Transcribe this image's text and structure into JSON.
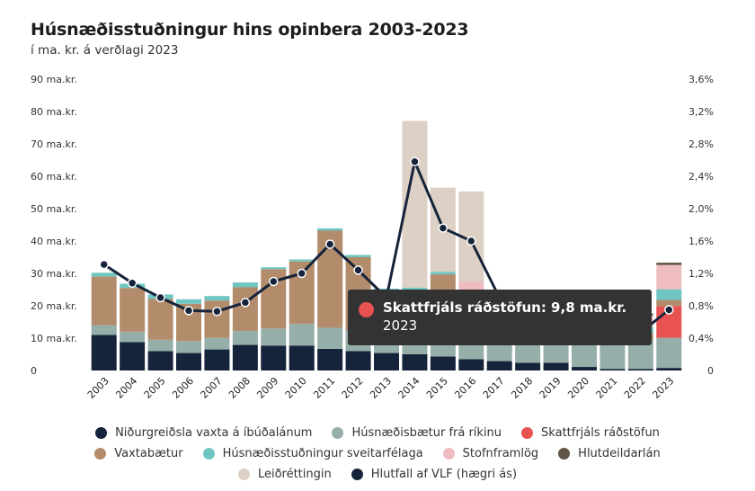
{
  "title": "Húsnæðisstuðningur hins opinbera 2003-2023",
  "subtitle": "í ma. kr. á verðlagi 2023",
  "colors": {
    "vaxta_ibudalanum": "#15243a",
    "husnaedisbaetur_rikinu": "#95aea9",
    "skattfrjals": "#e85352",
    "vaxtabaetur": "#b38c6c",
    "sveitarfelaga": "#6fc6c0",
    "stofnframlog": "#efbcc0",
    "hlutdeildarlan": "#5f5445",
    "leidrettingin": "#ddd0c4",
    "line": "#15243a"
  },
  "legend": [
    {
      "label": "Niðurgreiðsla vaxta á íbúðalánum",
      "color": "#15243a"
    },
    {
      "label": "Húsnæðisbætur frá ríkinu",
      "color": "#95aea9"
    },
    {
      "label": "Skattfrjáls ráðstöfun",
      "color": "#e85352"
    },
    {
      "label": "Vaxtabætur",
      "color": "#b38c6c"
    },
    {
      "label": "Húsnæðisstuðningur sveitarfélaga",
      "color": "#6fc6c0"
    },
    {
      "label": "Stofnframlög",
      "color": "#efbcc0"
    },
    {
      "label": "Hlutdeildarlán",
      "color": "#5f5445"
    },
    {
      "label": "Leiðréttingin",
      "color": "#ddd0c4"
    },
    {
      "label": "Hlutfall af VLF (hægri ás)",
      "color": "#15243a"
    }
  ],
  "tooltip": {
    "label": "Skattfrjáls ráðstöfun: 9,8 ma.kr.",
    "year": "2023"
  },
  "chart_data": {
    "type": "bar",
    "stacked": true,
    "categories": [
      "2003",
      "2004",
      "2005",
      "2006",
      "2007",
      "2008",
      "2009",
      "2010",
      "2011",
      "2012",
      "2013",
      "2014",
      "2015",
      "2016",
      "2017",
      "2018",
      "2019",
      "2020",
      "2021",
      "2022",
      "2023"
    ],
    "ylim": [
      0,
      90
    ],
    "y2lim": [
      0,
      3.6
    ],
    "yticks": [
      "0",
      "10 ma.kr.",
      "20 ma.kr.",
      "30 ma.kr.",
      "40 ma.kr.",
      "50 ma.kr.",
      "60 ma.kr.",
      "70 ma.kr.",
      "80 ma.kr.",
      "90 ma.kr."
    ],
    "y2ticks": [
      "0",
      "0,4%",
      "0,8%",
      "1,2%",
      "1,6%",
      "2,0%",
      "2,4%",
      "2,8%",
      "3,2%",
      "3,6%"
    ],
    "series": [
      {
        "name": "Niðurgreiðsla vaxta á íbúðalánum",
        "key": "vaxta_ibudalanum",
        "values": [
          11,
          8.8,
          6,
          5.4,
          6.5,
          7.9,
          7.7,
          7.7,
          6.7,
          6,
          5.4,
          5,
          4.3,
          3.5,
          2.9,
          2.4,
          2.4,
          1.1,
          0.5,
          0.5,
          0.8
        ]
      },
      {
        "name": "Húsnæðisbætur frá ríkinu",
        "key": "husnaedisbaetur_rikinu",
        "values": [
          3,
          3.2,
          3.5,
          3.7,
          3.6,
          4.3,
          5.3,
          6.7,
          6.5,
          6.5,
          6.6,
          6.9,
          6.9,
          7,
          7.4,
          8.2,
          8.5,
          8.9,
          9.1,
          9,
          9.3
        ]
      },
      {
        "name": "Skattfrjáls ráðstöfun",
        "key": "skattfrjals",
        "values": [
          0,
          0,
          0,
          0,
          0,
          0,
          0,
          0,
          0,
          0,
          0,
          0,
          0,
          0,
          0,
          0,
          0,
          0,
          0,
          0,
          9.8
        ]
      },
      {
        "name": "Vaxtabætur",
        "key": "vaxtabaetur",
        "values": [
          15,
          13.5,
          12.6,
          11.5,
          11.5,
          13.5,
          18.3,
          19.3,
          30,
          22.5,
          12.5,
          12.8,
          18.5,
          10,
          5.5,
          3.5,
          3.2,
          2.8,
          2.4,
          2.1,
          1.9
        ]
      },
      {
        "name": "Húsnæðisstuðningur sveitarfélaga",
        "key": "sveitarfelaga",
        "values": [
          1.2,
          1.3,
          1.4,
          1.4,
          1.4,
          1.5,
          0.6,
          0.6,
          0.7,
          0.7,
          0.8,
          0.9,
          0.8,
          1.6,
          2.1,
          2.4,
          2.7,
          1.9,
          1.7,
          1.9,
          3.3
        ]
      },
      {
        "name": "Stofnframlög",
        "key": "stofnframlog",
        "values": [
          0,
          0,
          0,
          0,
          0,
          0,
          0,
          0,
          0,
          0,
          0,
          0,
          0,
          5.4,
          5.3,
          6.7,
          7.2,
          9,
          3.8,
          3.6,
          7.5
        ]
      },
      {
        "name": "Hlutdeildarlán",
        "key": "hlutdeildarlan",
        "values": [
          0,
          0,
          0,
          0,
          0,
          0,
          0,
          0,
          0,
          0,
          0,
          0,
          0,
          0,
          0,
          0,
          0,
          0,
          0.8,
          0.5,
          0.7
        ]
      },
      {
        "name": "Leiðréttingin",
        "key": "leidrettingin",
        "values": [
          0,
          0,
          0,
          0,
          0,
          0,
          0,
          0,
          0,
          0,
          0,
          51.5,
          26,
          27.8,
          0,
          0,
          0,
          0,
          0,
          0,
          0
        ]
      }
    ],
    "line": {
      "name": "Hlutfall af VLF (hægri ás)",
      "axis": "right",
      "values": [
        1.31,
        1.08,
        0.9,
        0.74,
        0.73,
        0.84,
        1.1,
        1.2,
        1.56,
        1.24,
        0.9,
        2.58,
        1.76,
        1.6,
        0.9,
        0.6,
        0.58,
        0.52,
        0.49,
        0.47,
        0.75
      ]
    }
  }
}
